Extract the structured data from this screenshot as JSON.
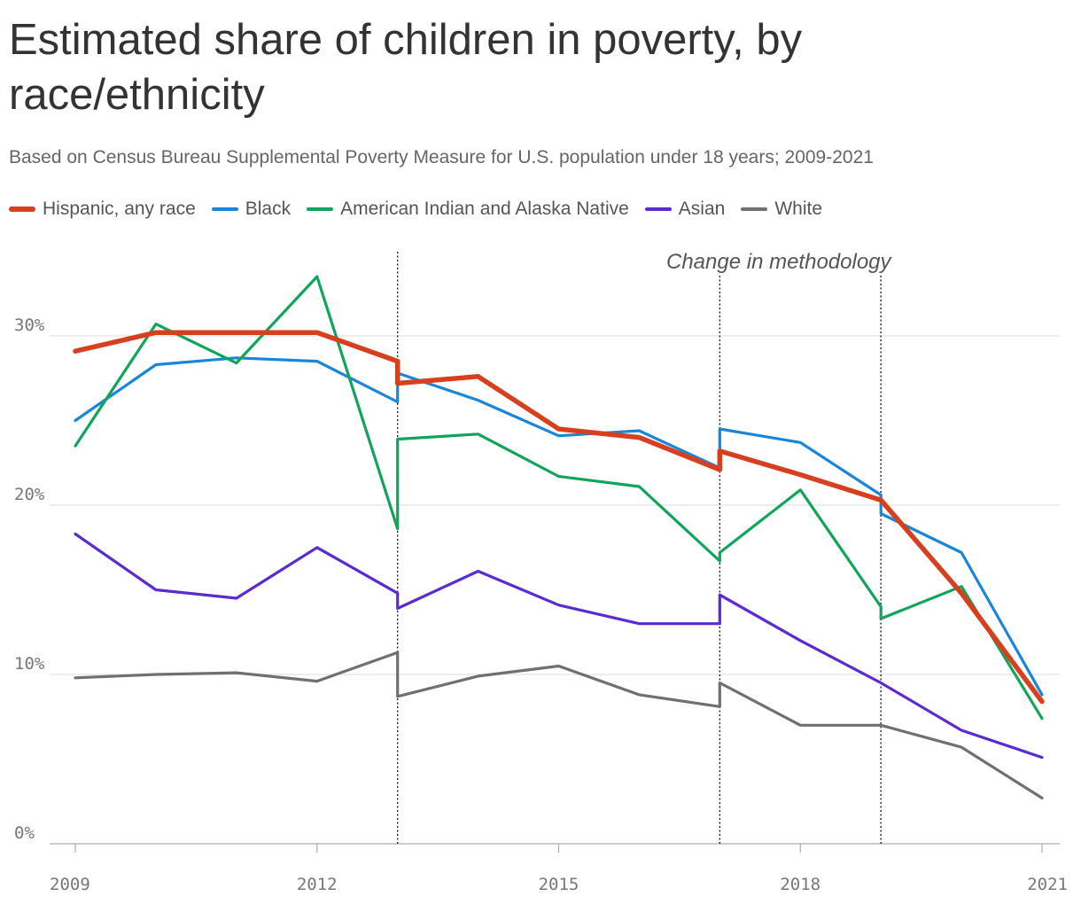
{
  "chart_data": {
    "type": "line",
    "title": "Estimated share of children in poverty, by race/ethnicity",
    "subtitle": "Based on Census Bureau Supplemental Poverty Measure for U.S. population under 18 years; 2009-2021",
    "annotation": "Change in methodology",
    "methodology_changes": [
      2013,
      2017,
      2019
    ],
    "xlim": [
      2009,
      2021
    ],
    "ylim": [
      0,
      35
    ],
    "x_ticks": [
      2009,
      2012,
      2015,
      2018,
      2021
    ],
    "y_ticks": [
      0,
      10,
      20,
      30
    ],
    "y_tick_labels": [
      "0%",
      "10%",
      "20%",
      "30%"
    ],
    "grid": "horizontal",
    "legend_position": "top-left",
    "series": [
      {
        "name": "Hispanic, any race",
        "color": "#d7401e",
        "bold": true,
        "points": [
          [
            2009,
            29.1
          ],
          [
            2010,
            30.2
          ],
          [
            2011,
            30.2
          ],
          [
            2012,
            30.2
          ],
          [
            2013,
            28.5
          ],
          [
            2013,
            27.2
          ],
          [
            2014,
            27.6
          ],
          [
            2015,
            24.5
          ],
          [
            2016,
            24.0
          ],
          [
            2017,
            22.1
          ],
          [
            2017,
            23.2
          ],
          [
            2018,
            21.8
          ],
          [
            2019,
            20.3
          ],
          [
            2020,
            14.8
          ],
          [
            2021,
            8.4
          ]
        ]
      },
      {
        "name": "Black",
        "color": "#1a86d9",
        "points": [
          [
            2009,
            25.0
          ],
          [
            2010,
            28.3
          ],
          [
            2011,
            28.7
          ],
          [
            2012,
            28.5
          ],
          [
            2013,
            26.1
          ],
          [
            2013,
            27.8
          ],
          [
            2014,
            26.2
          ],
          [
            2015,
            24.1
          ],
          [
            2016,
            24.4
          ],
          [
            2017,
            22.2
          ],
          [
            2017,
            24.5
          ],
          [
            2018,
            23.7
          ],
          [
            2019,
            20.6
          ],
          [
            2019,
            19.5
          ],
          [
            2020,
            17.2
          ],
          [
            2021,
            8.8
          ]
        ]
      },
      {
        "name": "American Indian and Alaska Native",
        "color": "#10a55a",
        "points": [
          [
            2009,
            23.5
          ],
          [
            2010,
            30.7
          ],
          [
            2011,
            28.4
          ],
          [
            2012,
            33.5
          ],
          [
            2013,
            18.6
          ],
          [
            2013,
            23.9
          ],
          [
            2014,
            24.2
          ],
          [
            2015,
            21.7
          ],
          [
            2016,
            21.1
          ],
          [
            2017,
            16.7
          ],
          [
            2017,
            17.2
          ],
          [
            2018,
            20.9
          ],
          [
            2019,
            14.0
          ],
          [
            2019,
            13.3
          ],
          [
            2020,
            15.2
          ],
          [
            2021,
            7.4
          ]
        ]
      },
      {
        "name": "Asian",
        "color": "#5b2bd1",
        "points": [
          [
            2009,
            18.3
          ],
          [
            2010,
            15.0
          ],
          [
            2011,
            14.5
          ],
          [
            2012,
            17.5
          ],
          [
            2013,
            14.8
          ],
          [
            2013,
            13.9
          ],
          [
            2014,
            16.1
          ],
          [
            2015,
            14.1
          ],
          [
            2016,
            13.0
          ],
          [
            2017,
            13.0
          ],
          [
            2017,
            14.7
          ],
          [
            2018,
            12.0
          ],
          [
            2019,
            9.5
          ],
          [
            2020,
            6.7
          ],
          [
            2021,
            5.1
          ]
        ]
      },
      {
        "name": "White",
        "color": "#707070",
        "points": [
          [
            2009,
            9.8
          ],
          [
            2010,
            10.0
          ],
          [
            2011,
            10.1
          ],
          [
            2012,
            9.6
          ],
          [
            2013,
            11.3
          ],
          [
            2013,
            8.7
          ],
          [
            2014,
            9.9
          ],
          [
            2015,
            10.5
          ],
          [
            2016,
            8.8
          ],
          [
            2017,
            8.1
          ],
          [
            2017,
            9.5
          ],
          [
            2018,
            7.0
          ],
          [
            2019,
            7.0
          ],
          [
            2020,
            5.7
          ],
          [
            2021,
            2.7
          ]
        ]
      }
    ]
  }
}
